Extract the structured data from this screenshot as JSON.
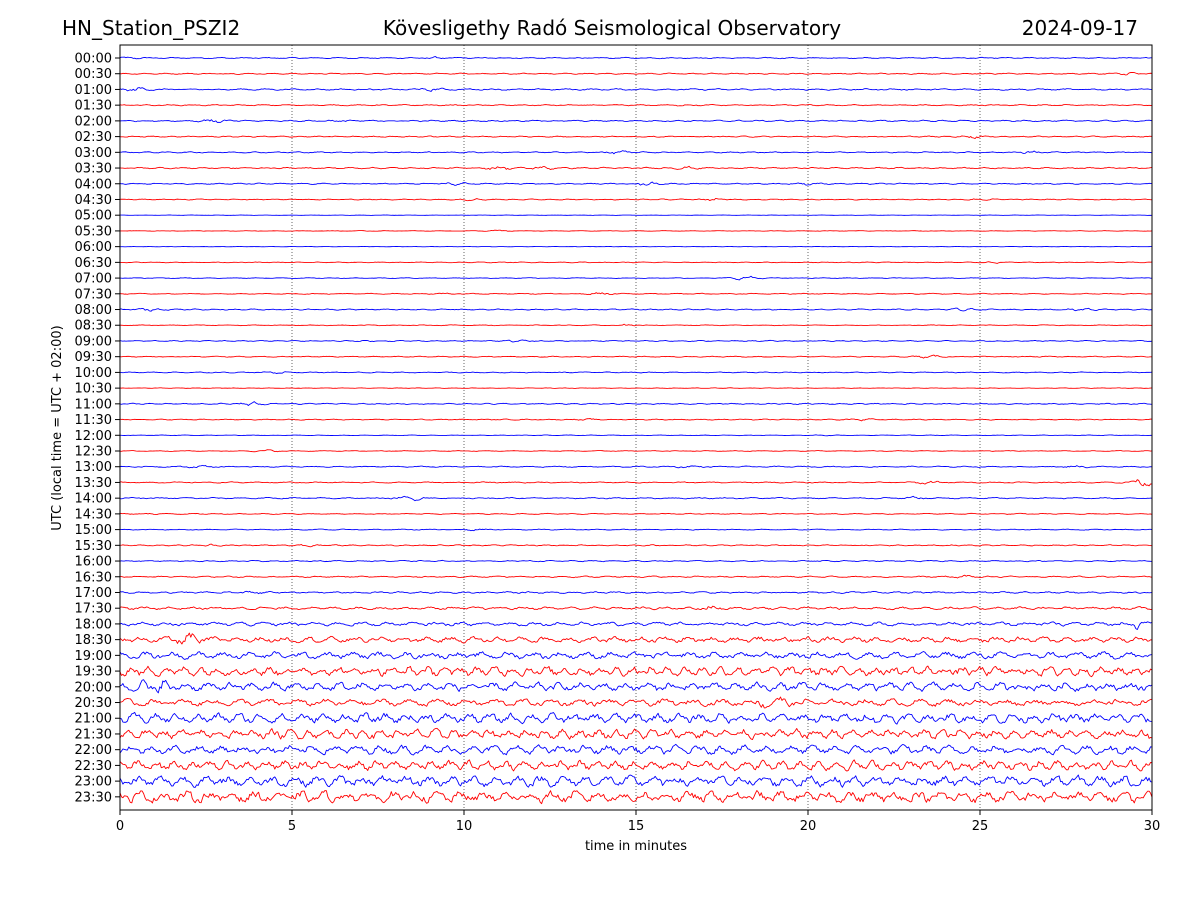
{
  "header": {
    "station": "HN_Station_PSZI2",
    "observatory": "Kövesligethy Radó Seismological Observatory",
    "date": "2024-09-17"
  },
  "chart_data": {
    "type": "line",
    "title": "Kövesligethy Radó Seismological Observatory",
    "xlabel": "time in minutes",
    "ylabel": "UTC (local time = UTC + 02:00)",
    "xlim": [
      0,
      30
    ],
    "x_ticks": [
      0,
      5,
      10,
      15,
      20,
      25,
      30
    ],
    "x_tick_labels": [
      "0",
      "5",
      "10",
      "15",
      "20",
      "25",
      "30"
    ],
    "grid_x": true,
    "series_colors": [
      "#0000ff",
      "#ff0000"
    ],
    "rows": [
      {
        "label": "00:00",
        "amp": 0.6,
        "bursts": [
          [
            0.3,
            1.0
          ],
          [
            9.2,
            1.2
          ]
        ]
      },
      {
        "label": "00:30",
        "amp": 0.6,
        "bursts": [
          [
            29.3,
            2.0
          ]
        ]
      },
      {
        "label": "01:00",
        "amp": 0.8,
        "bursts": [
          [
            0.5,
            2.0
          ],
          [
            9.0,
            1.5
          ]
        ]
      },
      {
        "label": "01:30",
        "amp": 0.6,
        "bursts": [
          [
            16.5,
            1.0
          ]
        ]
      },
      {
        "label": "02:00",
        "amp": 0.7,
        "bursts": [
          [
            2.7,
            2.5
          ],
          [
            6.5,
            1.2
          ]
        ]
      },
      {
        "label": "02:30",
        "amp": 0.6,
        "bursts": [
          [
            24.8,
            2.5
          ]
        ]
      },
      {
        "label": "03:00",
        "amp": 0.6,
        "bursts": [
          [
            14.5,
            2.5
          ],
          [
            26.5,
            2.0
          ]
        ]
      },
      {
        "label": "03:30",
        "amp": 0.7,
        "bursts": [
          [
            11.0,
            2.5
          ],
          [
            12.3,
            2.0
          ],
          [
            16.5,
            1.5
          ]
        ]
      },
      {
        "label": "04:00",
        "amp": 0.6,
        "bursts": [
          [
            9.8,
            2.2
          ],
          [
            15.3,
            2.5
          ],
          [
            20.0,
            1.5
          ]
        ]
      },
      {
        "label": "04:30",
        "amp": 0.5,
        "bursts": [
          [
            10.2,
            1.5
          ],
          [
            17.3,
            2.5
          ],
          [
            25.0,
            1.2
          ]
        ]
      },
      {
        "label": "05:00",
        "amp": 0.2,
        "bursts": []
      },
      {
        "label": "05:30",
        "amp": 0.3,
        "bursts": [
          [
            11.0,
            2.0
          ]
        ]
      },
      {
        "label": "06:00",
        "amp": 0.2,
        "bursts": []
      },
      {
        "label": "06:30",
        "amp": 0.4,
        "bursts": [
          [
            25.5,
            1.5
          ]
        ]
      },
      {
        "label": "07:00",
        "amp": 0.4,
        "bursts": [
          [
            18.2,
            4.5
          ]
        ]
      },
      {
        "label": "07:30",
        "amp": 0.5,
        "bursts": [
          [
            9.5,
            1.2
          ],
          [
            14.0,
            2.5
          ]
        ]
      },
      {
        "label": "08:00",
        "amp": 0.6,
        "bursts": [
          [
            0.8,
            2.2
          ],
          [
            24.5,
            2.0
          ],
          [
            28.0,
            1.5
          ]
        ]
      },
      {
        "label": "08:30",
        "amp": 0.4,
        "bursts": [
          [
            14.7,
            2.2
          ]
        ]
      },
      {
        "label": "09:00",
        "amp": 0.5,
        "bursts": [
          [
            11.5,
            2.5
          ],
          [
            7.5,
            1.0
          ]
        ]
      },
      {
        "label": "09:30",
        "amp": 0.5,
        "bursts": [
          [
            23.5,
            2.5
          ]
        ]
      },
      {
        "label": "10:00",
        "amp": 0.5,
        "bursts": [
          [
            4.6,
            1.5
          ]
        ]
      },
      {
        "label": "10:30",
        "amp": 0.3,
        "bursts": []
      },
      {
        "label": "11:00",
        "amp": 0.6,
        "bursts": [
          [
            3.8,
            3.0
          ]
        ]
      },
      {
        "label": "11:30",
        "amp": 0.5,
        "bursts": [
          [
            13.5,
            1.2
          ],
          [
            21.5,
            2.0
          ]
        ]
      },
      {
        "label": "12:00",
        "amp": 0.3,
        "bursts": [
          [
            20.5,
            1.0
          ]
        ]
      },
      {
        "label": "12:30",
        "amp": 0.4,
        "bursts": [
          [
            4.3,
            2.2
          ]
        ]
      },
      {
        "label": "13:00",
        "amp": 0.6,
        "bursts": [
          [
            2.3,
            1.5
          ],
          [
            16.5,
            1.2
          ],
          [
            27.8,
            1.5
          ]
        ]
      },
      {
        "label": "13:30",
        "amp": 0.6,
        "bursts": [
          [
            23.5,
            2.5
          ],
          [
            29.7,
            6.0
          ]
        ]
      },
      {
        "label": "14:00",
        "amp": 0.7,
        "bursts": [
          [
            8.5,
            2.5
          ],
          [
            23.0,
            1.5
          ]
        ]
      },
      {
        "label": "14:30",
        "amp": 0.5,
        "bursts": [
          [
            1.0,
            1.5
          ]
        ]
      },
      {
        "label": "15:00",
        "amp": 0.5,
        "bursts": [
          [
            10.3,
            1.5
          ]
        ]
      },
      {
        "label": "15:30",
        "amp": 0.6,
        "bursts": [
          [
            2.5,
            1.2
          ],
          [
            5.5,
            1.5
          ]
        ]
      },
      {
        "label": "16:00",
        "amp": 0.6,
        "bursts": []
      },
      {
        "label": "16:30",
        "amp": 0.7,
        "bursts": [
          [
            24.5,
            1.5
          ]
        ]
      },
      {
        "label": "17:00",
        "amp": 0.9,
        "bursts": [
          [
            3.8,
            1.2
          ]
        ]
      },
      {
        "label": "17:30",
        "amp": 1.4,
        "bursts": [
          [
            17.3,
            1.5
          ]
        ]
      },
      {
        "label": "18:00",
        "amp": 2.0,
        "bursts": [
          [
            29.5,
            1.5
          ]
        ]
      },
      {
        "label": "18:30",
        "amp": 3.0,
        "bursts": [
          [
            2.0,
            1.5
          ]
        ]
      },
      {
        "label": "19:00",
        "amp": 3.5,
        "bursts": []
      },
      {
        "label": "19:30",
        "amp": 5.0,
        "bursts": []
      },
      {
        "label": "20:00",
        "amp": 4.5,
        "bursts": [
          [
            1.0,
            1.5
          ]
        ]
      },
      {
        "label": "20:30",
        "amp": 3.5,
        "bursts": [
          [
            19.0,
            1.5
          ]
        ]
      },
      {
        "label": "21:00",
        "amp": 5.0,
        "bursts": []
      },
      {
        "label": "21:30",
        "amp": 5.0,
        "bursts": []
      },
      {
        "label": "22:00",
        "amp": 4.5,
        "bursts": []
      },
      {
        "label": "22:30",
        "amp": 5.0,
        "bursts": []
      },
      {
        "label": "23:00",
        "amp": 5.5,
        "bursts": []
      },
      {
        "label": "23:30",
        "amp": 6.0,
        "bursts": []
      }
    ]
  }
}
